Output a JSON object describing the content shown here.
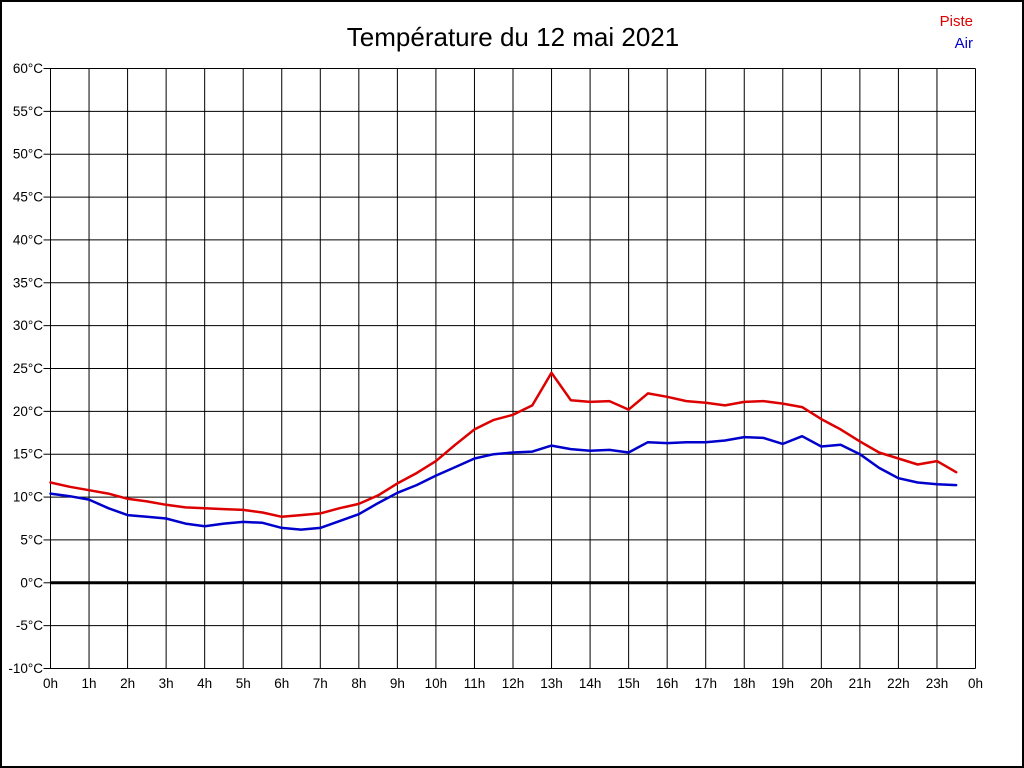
{
  "page": {
    "background": "#ffffff",
    "border_color": "#000000",
    "grid_color": "#000000"
  },
  "title": "Température du 12 mai 2021",
  "legend": [
    {
      "label": "Piste",
      "color": "#dd0000"
    },
    {
      "label": "Air",
      "color": "#0000cc"
    }
  ],
  "chart_data": {
    "type": "line",
    "title": "Température du 12 mai 2021",
    "xlabel": "",
    "ylabel": "",
    "y_unit": "°C",
    "x_unit": "h",
    "ylim": [
      -10,
      60
    ],
    "ystep": 5,
    "xlim": [
      0,
      24
    ],
    "grid": true,
    "legend_position": "top-right",
    "zero_line": {
      "value": 0,
      "style": "thick-black"
    },
    "y_tick_labels": [
      "60°C",
      "55°C",
      "50°C",
      "45°C",
      "40°C",
      "35°C",
      "30°C",
      "25°C",
      "20°C",
      "15°C",
      "10°C",
      "5°C",
      "0°C",
      "-5°C",
      "-10°C"
    ],
    "x_tick_labels": [
      "0h",
      "1h",
      "2h",
      "3h",
      "4h",
      "5h",
      "6h",
      "7h",
      "8h",
      "9h",
      "10h",
      "11h",
      "12h",
      "13h",
      "14h",
      "15h",
      "16h",
      "17h",
      "18h",
      "19h",
      "20h",
      "21h",
      "22h",
      "23h",
      "0h"
    ],
    "x": [
      0,
      0.5,
      1,
      1.5,
      2,
      2.5,
      3,
      3.5,
      4,
      4.5,
      5,
      5.5,
      6,
      6.5,
      7,
      7.5,
      8,
      8.5,
      9,
      9.5,
      10,
      10.5,
      11,
      11.5,
      12,
      12.5,
      13,
      13.5,
      14,
      14.5,
      15,
      15.5,
      16,
      16.5,
      17,
      17.5,
      18,
      18.5,
      19,
      19.5,
      20,
      20.5,
      21,
      21.5,
      22,
      22.5,
      23,
      23.5
    ],
    "series": [
      {
        "name": "Piste",
        "color": "#dd0000",
        "values": [
          11.7,
          11.2,
          10.8,
          10.4,
          9.8,
          9.5,
          9.1,
          8.8,
          8.7,
          8.6,
          8.5,
          8.2,
          7.7,
          7.9,
          8.1,
          8.7,
          9.2,
          10.2,
          11.6,
          12.8,
          14.2,
          16.1,
          17.9,
          19.0,
          19.6,
          20.7,
          24.5,
          21.3,
          21.1,
          21.2,
          20.2,
          22.1,
          21.7,
          21.2,
          21.0,
          20.7,
          21.1,
          21.2,
          20.9,
          20.5,
          19.1,
          17.9,
          16.5,
          15.2,
          14.5,
          13.8,
          14.2,
          12.9
        ]
      },
      {
        "name": "Air",
        "color": "#0000cc",
        "values": [
          10.4,
          10.1,
          9.7,
          8.7,
          7.9,
          7.7,
          7.5,
          6.9,
          6.6,
          6.9,
          7.1,
          7.0,
          6.4,
          6.2,
          6.4,
          7.2,
          8.0,
          9.3,
          10.5,
          11.4,
          12.5,
          13.5,
          14.5,
          15.0,
          15.2,
          15.3,
          16.0,
          15.6,
          15.4,
          15.5,
          15.2,
          16.4,
          16.3,
          16.4,
          16.4,
          16.6,
          17.0,
          16.9,
          16.2,
          17.1,
          15.9,
          16.1,
          15.0,
          13.4,
          12.2,
          11.7,
          11.5,
          11.4
        ]
      }
    ]
  }
}
